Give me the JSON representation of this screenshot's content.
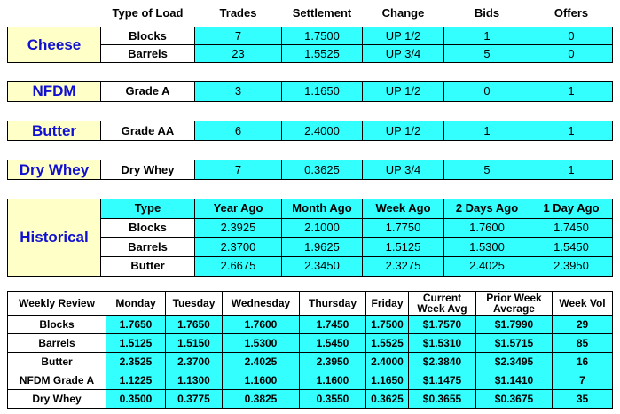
{
  "header": [
    "Type of Load",
    "Trades",
    "Settlement",
    "Change",
    "Bids",
    "Offers"
  ],
  "products": [
    {
      "name": "Cheese",
      "rows": [
        [
          "Blocks",
          "7",
          "1.7500",
          "UP 1/2",
          "1",
          "0"
        ],
        [
          "Barrels",
          "23",
          "1.5525",
          "UP 3/4",
          "5",
          "0"
        ]
      ]
    },
    {
      "name": "NFDM",
      "rows": [
        [
          "Grade A",
          "3",
          "1.1650",
          "UP 1/2",
          "0",
          "1"
        ]
      ]
    },
    {
      "name": "Butter",
      "rows": [
        [
          "Grade AA",
          "6",
          "2.4000",
          "UP 1/2",
          "1",
          "1"
        ]
      ]
    },
    {
      "name": "Dry Whey",
      "rows": [
        [
          "Dry Whey",
          "7",
          "0.3625",
          "UP 3/4",
          "5",
          "1"
        ]
      ]
    }
  ],
  "historical": {
    "title": "Historical",
    "header": [
      "Type",
      "Year Ago",
      "Month Ago",
      "Week Ago",
      "2 Days Ago",
      "1 Day Ago"
    ],
    "rows": [
      [
        "Blocks",
        "2.3925",
        "2.1000",
        "1.7750",
        "1.7600",
        "1.7450"
      ],
      [
        "Barrels",
        "2.3700",
        "1.9625",
        "1.5125",
        "1.5300",
        "1.5450"
      ],
      [
        "Butter",
        "2.6675",
        "2.3450",
        "2.3275",
        "2.4025",
        "2.3950"
      ]
    ]
  },
  "weekly": {
    "header": [
      "Weekly Review",
      "Monday",
      "Tuesday",
      "Wednesday",
      "Thursday",
      "Friday",
      "Current Week Avg",
      "Prior Week Average",
      "Week Vol"
    ],
    "rows": [
      [
        "Blocks",
        "1.7650",
        "1.7650",
        "1.7600",
        "1.7450",
        "1.7500",
        "$1.7570",
        "$1.7990",
        "29"
      ],
      [
        "Barrels",
        "1.5125",
        "1.5150",
        "1.5300",
        "1.5450",
        "1.5525",
        "$1.5310",
        "$1.5715",
        "85"
      ],
      [
        "Butter",
        "2.3525",
        "2.3700",
        "2.4025",
        "2.3950",
        "2.4000",
        "$2.3840",
        "$2.3495",
        "16"
      ],
      [
        "NFDM Grade A",
        "1.1225",
        "1.1300",
        "1.1600",
        "1.1600",
        "1.1650",
        "$1.1475",
        "$1.1410",
        "7"
      ],
      [
        "Dry Whey",
        "0.3500",
        "0.3775",
        "0.3825",
        "0.3550",
        "0.3625",
        "$0.3655",
        "$0.3675",
        "35"
      ]
    ]
  }
}
